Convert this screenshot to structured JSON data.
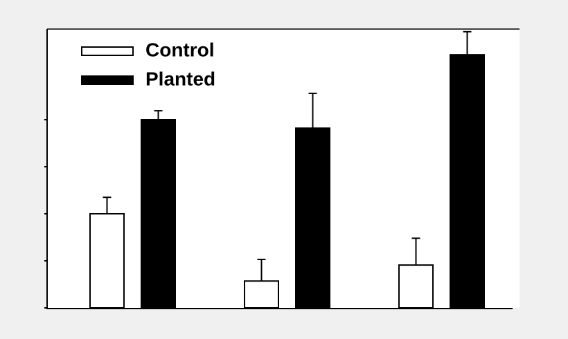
{
  "chart_data": {
    "type": "bar",
    "categories": [
      null,
      null,
      null
    ],
    "series": [
      {
        "name": "Control",
        "color": "#ffffff",
        "values": [
          2.0,
          0.57,
          0.91
        ],
        "errors": [
          0.35,
          0.46,
          0.57
        ]
      },
      {
        "name": "Planted",
        "color": "#000000",
        "values": [
          4.0,
          3.82,
          5.38
        ],
        "errors": [
          0.19,
          0.74,
          0.49
        ]
      }
    ],
    "ylim": [
      0,
      6
    ],
    "yticks": [
      0,
      1,
      2,
      3,
      4
    ],
    "legend": "top-left"
  }
}
